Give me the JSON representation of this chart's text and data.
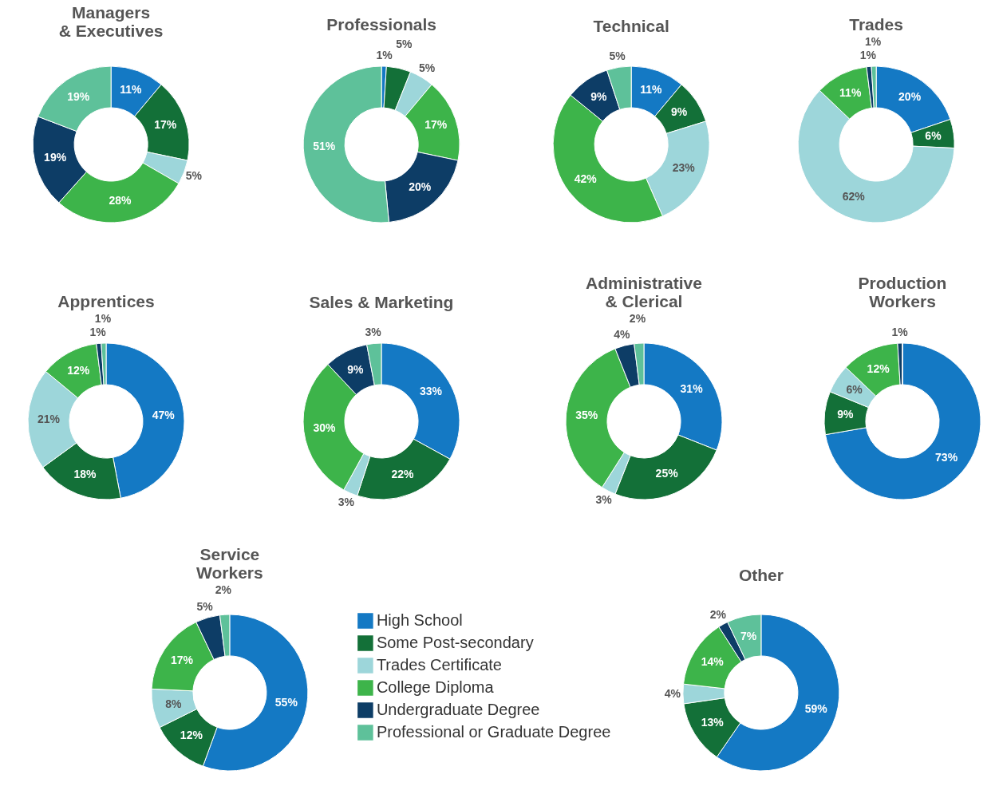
{
  "chart_data": [
    {
      "type": "donut",
      "title": "Managers\n& Executives",
      "legend": false,
      "categories": [
        null,
        null,
        null,
        null,
        null,
        null
      ],
      "colors": [
        "#1479c4",
        "#137038",
        "#9dd6da",
        "#3db44a",
        "#0d3d66",
        "#5ec19a"
      ],
      "values": [
        11,
        17,
        5,
        28,
        19,
        19
      ],
      "value_labels": [
        "11%",
        "17%",
        "5%",
        "28%",
        "19%",
        "19%"
      ]
    },
    {
      "type": "donut",
      "title": "Professionals",
      "legend": false,
      "categories": [
        null,
        null,
        null,
        null,
        null,
        null
      ],
      "colors": [
        "#1479c4",
        "#137038",
        "#9dd6da",
        "#3db44a",
        "#0d3d66",
        "#5ec19a"
      ],
      "values": [
        1,
        5,
        5,
        17,
        20,
        51
      ],
      "value_labels": [
        "1%",
        "5%",
        "5%",
        "17%",
        "20%",
        "51%"
      ]
    },
    {
      "type": "donut",
      "title": "Technical",
      "legend": false,
      "categories": [
        null,
        null,
        null,
        null,
        null,
        null
      ],
      "colors": [
        "#1479c4",
        "#137038",
        "#9dd6da",
        "#3db44a",
        "#0d3d66",
        "#5ec19a"
      ],
      "values": [
        11,
        9,
        23,
        42,
        9,
        5
      ],
      "value_labels": [
        "11%",
        "9%",
        "23%",
        "42%",
        "9%",
        "5%"
      ]
    },
    {
      "type": "donut",
      "title": "Trades",
      "legend": false,
      "categories": [
        null,
        null,
        null,
        null,
        null,
        null
      ],
      "colors": [
        "#1479c4",
        "#137038",
        "#9dd6da",
        "#3db44a",
        "#0d3d66",
        "#5ec19a"
      ],
      "values": [
        20,
        6,
        62,
        11,
        1,
        1
      ],
      "value_labels": [
        "20%",
        "6%",
        "62%",
        "11%",
        "1%",
        "1%"
      ]
    },
    {
      "type": "donut",
      "title": "Apprentices",
      "legend": false,
      "categories": [
        null,
        null,
        null,
        null,
        null,
        null
      ],
      "colors": [
        "#1479c4",
        "#137038",
        "#9dd6da",
        "#3db44a",
        "#0d3d66",
        "#5ec19a"
      ],
      "values": [
        47,
        18,
        21,
        12,
        1,
        1
      ],
      "value_labels": [
        "47%",
        "18%",
        "21%",
        "12%",
        "1%",
        "1%"
      ]
    },
    {
      "type": "donut",
      "title": "Sales & Marketing",
      "legend": false,
      "categories": [
        null,
        null,
        null,
        null,
        null,
        null
      ],
      "colors": [
        "#1479c4",
        "#137038",
        "#9dd6da",
        "#3db44a",
        "#0d3d66",
        "#5ec19a"
      ],
      "values": [
        33,
        22,
        3,
        30,
        9,
        3
      ],
      "value_labels": [
        "33%",
        "22%",
        "3%",
        "30%",
        "9%",
        "3%"
      ]
    },
    {
      "type": "donut",
      "title": "Administrative\n& Clerical",
      "legend": false,
      "categories": [
        null,
        null,
        null,
        null,
        null,
        null
      ],
      "colors": [
        "#1479c4",
        "#137038",
        "#9dd6da",
        "#3db44a",
        "#0d3d66",
        "#5ec19a"
      ],
      "values": [
        31,
        25,
        3,
        35,
        4,
        2
      ],
      "value_labels": [
        "31%",
        "25%",
        "3%",
        "35%",
        "4%",
        "2%"
      ]
    },
    {
      "type": "donut",
      "title": "Production\nWorkers",
      "legend": false,
      "categories": [
        null,
        null,
        null,
        null,
        null,
        null
      ],
      "colors": [
        "#1479c4",
        "#137038",
        "#9dd6da",
        "#3db44a",
        "#0d3d66",
        "#5ec19a"
      ],
      "values": [
        73,
        9,
        6,
        12,
        1,
        0
      ],
      "value_labels": [
        "73%",
        "9%",
        "6%",
        "12%",
        "1%",
        null
      ]
    },
    {
      "type": "donut",
      "title": "Service\nWorkers",
      "legend": "right",
      "categories": [
        "High School",
        "Some Post-secondary",
        "Trades Certificate",
        "College Diploma",
        "Undergraduate Degree",
        "Professional or Graduate Degree"
      ],
      "colors": [
        "#1479c4",
        "#137038",
        "#9dd6da",
        "#3db44a",
        "#0d3d66",
        "#5ec19a"
      ],
      "values": [
        55,
        12,
        8,
        17,
        5,
        2
      ],
      "value_labels": [
        "55%",
        "12%",
        "8%",
        "17%",
        "5%",
        "2%"
      ]
    },
    {
      "type": "donut",
      "title": "Other",
      "legend": false,
      "categories": [
        null,
        null,
        null,
        null,
        null,
        null
      ],
      "colors": [
        "#1479c4",
        "#137038",
        "#9dd6da",
        "#3db44a",
        "#0d3d66",
        "#5ec19a"
      ],
      "values": [
        59,
        13,
        4,
        14,
        2,
        7
      ],
      "value_labels": [
        "59%",
        "13%",
        "4%",
        "14%",
        "2%",
        "7%"
      ]
    }
  ]
}
